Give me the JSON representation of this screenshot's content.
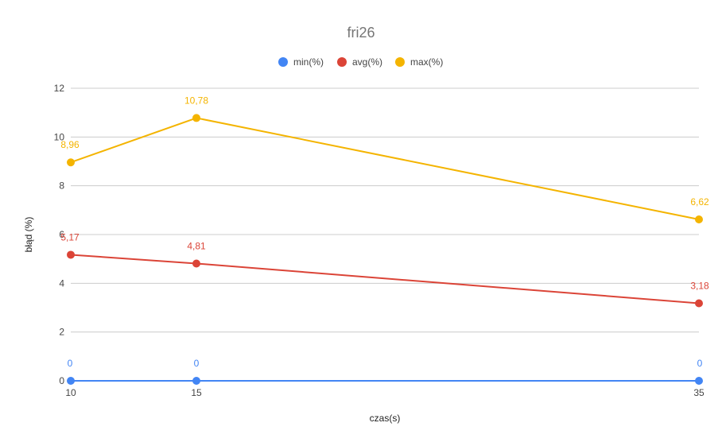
{
  "chart_data": {
    "type": "line",
    "title": "fri26",
    "xlabel": "czas(s)",
    "ylabel": "błąd (%)",
    "x": [
      10,
      15,
      35
    ],
    "x_tick_labels": [
      "10",
      "15",
      "35"
    ],
    "ylim": [
      0,
      12
    ],
    "y_ticks": [
      0,
      2,
      4,
      6,
      8,
      10,
      12
    ],
    "y_tick_labels": [
      "0",
      "2",
      "4",
      "6",
      "8",
      "10",
      "12"
    ],
    "grid": true,
    "legend_position": "top",
    "series": [
      {
        "name": "min(%)",
        "color": "#4285f4",
        "values": [
          0,
          0,
          0
        ],
        "labels": [
          "0",
          "0",
          "0"
        ]
      },
      {
        "name": "avg(%)",
        "color": "#db4437",
        "values": [
          5.17,
          4.81,
          3.18
        ],
        "labels": [
          "5,17",
          "4,81",
          "3,18"
        ]
      },
      {
        "name": "max(%)",
        "color": "#f4b400",
        "values": [
          8.96,
          10.78,
          6.62
        ],
        "labels": [
          "8,96",
          "10,78",
          "6,62"
        ]
      }
    ]
  }
}
